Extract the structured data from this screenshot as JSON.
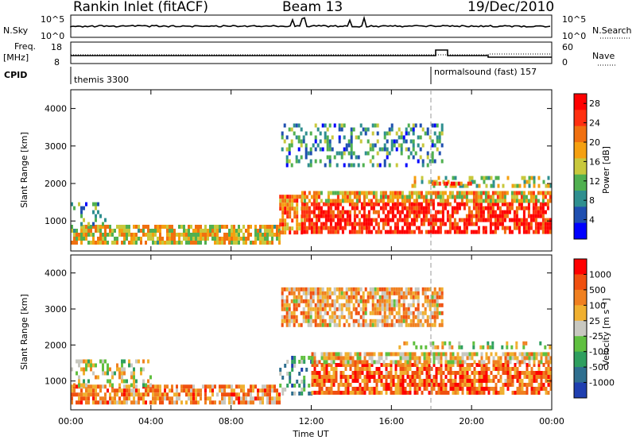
{
  "header": {
    "title": "Rankin Inlet (fitACF)",
    "beam": "Beam 13",
    "date": "19/Dec/2010"
  },
  "strip": {
    "nsky_label": "N.Sky",
    "nsky_ticks": [
      "10^5",
      "10^0"
    ],
    "nsearch_label": "N.Search",
    "nsearch_ticks": [
      "10^5",
      "10^0"
    ],
    "freq_label": "Freq.",
    "freq_unit": "[MHz]",
    "freq_ticks": [
      "18",
      "8"
    ],
    "nave_label": "Nave",
    "nave_ticks": [
      "60",
      "0"
    ],
    "cpid_label": "CPID",
    "cpid_segments": [
      {
        "label": "themis 3300",
        "start_hour": 0
      },
      {
        "label": "normalsound (fast) 157",
        "start_hour": 18
      }
    ]
  },
  "x_axis": {
    "label": "Time UT",
    "ticks": [
      "00:00",
      "04:00",
      "08:00",
      "12:00",
      "16:00",
      "20:00",
      "00:00"
    ],
    "range_hours": [
      0,
      24
    ]
  },
  "colors": {
    "power": [
      "#0000ff",
      "#1f4fb0",
      "#2f8f8f",
      "#50b050",
      "#c8c83c",
      "#f5a010",
      "#f07010",
      "#ff3010",
      "#ff0000"
    ],
    "velocity": [
      "#1f3fb0",
      "#2f6f8f",
      "#2f9f5f",
      "#60c040",
      "#c8c8c0",
      "#f0b030",
      "#f08020",
      "#f05010",
      "#ff0000"
    ]
  },
  "chart_data": [
    {
      "type": "heatmap",
      "name": "power",
      "ylabel": "Slant Range [km]",
      "xlabel": "",
      "yticks": [
        "1000",
        "2000",
        "3000",
        "4000"
      ],
      "ylim": [
        200,
        4500
      ],
      "xlim": [
        0,
        24
      ],
      "colorbar": {
        "label": "Power [dB]",
        "ticks": [
          "4",
          "8",
          "12",
          "16",
          "20",
          "24",
          "28"
        ],
        "range": [
          0,
          30
        ]
      },
      "regions": [
        {
          "t": [
            0,
            10.4
          ],
          "r": [
            400,
            900
          ],
          "level": 0.55
        },
        {
          "t": [
            0,
            1.8
          ],
          "r": [
            900,
            1500
          ],
          "level": 0.3
        },
        {
          "t": [
            10.4,
            11.5
          ],
          "r": [
            700,
            1700
          ],
          "level": 0.7
        },
        {
          "t": [
            11.5,
            24
          ],
          "r": [
            700,
            1500
          ],
          "level": 0.9
        },
        {
          "t": [
            11.5,
            24
          ],
          "r": [
            1500,
            1800
          ],
          "level": 0.6
        },
        {
          "t": [
            17,
            24
          ],
          "r": [
            1900,
            2200
          ],
          "level": 0.45
        },
        {
          "t": [
            10.5,
            18.5
          ],
          "r": [
            2500,
            3600
          ],
          "level": 0.3
        },
        {
          "t": [
            18,
            20
          ],
          "r": [
            1950,
            2050
          ],
          "level": 0.75
        }
      ]
    },
    {
      "type": "heatmap",
      "name": "velocity",
      "ylabel": "Slant Range [km]",
      "xlabel": "Time UT",
      "yticks": [
        "1000",
        "2000",
        "3000",
        "4000"
      ],
      "ylim": [
        200,
        4500
      ],
      "xlim": [
        0,
        24
      ],
      "colorbar": {
        "label": "Velocity [m s⁻¹]",
        "ticks": [
          "1000",
          "500",
          "100",
          "25",
          "-25",
          "-100",
          "-500",
          "-1000"
        ],
        "range": [
          -1000,
          1000
        ]
      },
      "regions": [
        {
          "t": [
            0,
            10.4
          ],
          "r": [
            400,
            900
          ],
          "level": 0.7
        },
        {
          "t": [
            0,
            4
          ],
          "r": [
            900,
            1600
          ],
          "level": 0.5
        },
        {
          "t": [
            10.4,
            12
          ],
          "r": [
            700,
            1700
          ],
          "level": 0.3
        },
        {
          "t": [
            12,
            24
          ],
          "r": [
            700,
            1500
          ],
          "level": 0.78
        },
        {
          "t": [
            12,
            24
          ],
          "r": [
            1500,
            1800
          ],
          "level": 0.6
        },
        {
          "t": [
            16,
            24
          ],
          "r": [
            1900,
            2100
          ],
          "level": 0.5
        },
        {
          "t": [
            10.5,
            18.5
          ],
          "r": [
            2500,
            3600
          ],
          "level": 0.65
        }
      ]
    }
  ]
}
